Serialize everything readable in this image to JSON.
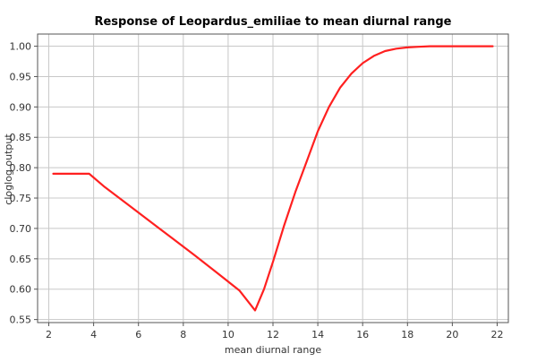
{
  "chart_data": {
    "type": "line",
    "title": "Response of Leopardus_emiliae to mean diurnal range",
    "xlabel": "mean diurnal range",
    "ylabel": "cloglog output",
    "xlim": [
      1.5,
      22.5
    ],
    "ylim": [
      0.545,
      1.02
    ],
    "xticks": [
      2,
      4,
      6,
      8,
      10,
      12,
      14,
      16,
      18,
      20,
      22
    ],
    "yticks": [
      0.55,
      0.6,
      0.65,
      0.7,
      0.75,
      0.8,
      0.85,
      0.9,
      0.95,
      1.0
    ],
    "ytick_labels": [
      "0.55",
      "0.60",
      "0.65",
      "0.70",
      "0.75",
      "0.80",
      "0.85",
      "0.90",
      "0.95",
      "1.00"
    ],
    "grid": true,
    "series": [
      {
        "color": "#ff2020",
        "x": [
          2.2,
          3.8,
          4.5,
          5.5,
          6.5,
          7.5,
          8.5,
          9.5,
          10.5,
          11.2,
          11.6,
          12.0,
          12.5,
          13.0,
          13.5,
          14.0,
          14.5,
          15.0,
          15.5,
          16.0,
          16.5,
          17.0,
          17.5,
          18.0,
          18.5,
          19.0,
          19.5,
          20.0,
          21.0,
          21.8
        ],
        "y": [
          0.79,
          0.79,
          0.768,
          0.74,
          0.712,
          0.684,
          0.656,
          0.627,
          0.598,
          0.565,
          0.6,
          0.645,
          0.705,
          0.76,
          0.81,
          0.86,
          0.9,
          0.932,
          0.955,
          0.972,
          0.984,
          0.992,
          0.996,
          0.998,
          0.999,
          1.0,
          1.0,
          1.0,
          1.0,
          1.0
        ]
      }
    ]
  }
}
